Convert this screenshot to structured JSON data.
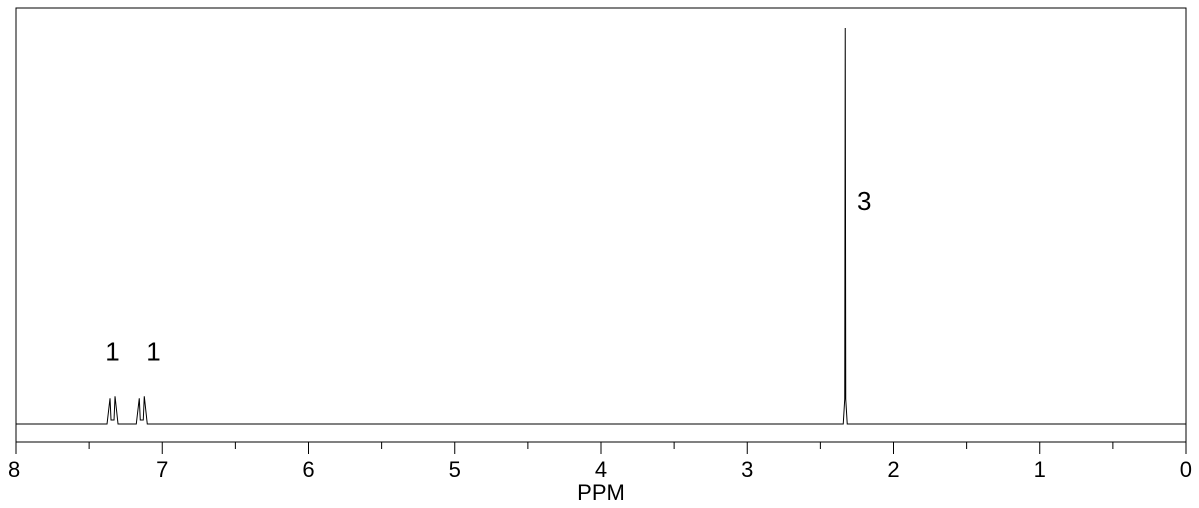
{
  "chart_data": {
    "type": "line",
    "title": "",
    "xlabel": "PPM",
    "ylabel": "",
    "xlim": [
      8,
      0
    ],
    "x_reversed": true,
    "ylim": [
      0,
      1
    ],
    "grid": false,
    "legend": "none",
    "major_ticks": [
      8,
      7,
      6,
      5,
      4,
      3,
      2,
      1,
      0
    ],
    "tick_labels": [
      "8",
      "7",
      "6",
      "5",
      "4",
      "3",
      "2",
      "1",
      "0"
    ],
    "minor_ticks": [
      7.5,
      6.5,
      5.5,
      4.5,
      3.5,
      2.5,
      1.5,
      0.5
    ],
    "baseline": 0,
    "peaks": [
      {
        "ppm": 7.34,
        "height": 0.065,
        "shape": "doublet"
      },
      {
        "ppm": 7.14,
        "height": 0.065,
        "shape": "doublet"
      },
      {
        "ppm": 2.33,
        "height": 1.0,
        "shape": "singlet"
      }
    ],
    "annotations": [
      {
        "text": "1",
        "ppm": 7.34,
        "y": 0.16
      },
      {
        "text": "1",
        "ppm": 7.06,
        "y": 0.16
      },
      {
        "text": "3",
        "ppm": 2.2,
        "y": 0.54
      }
    ],
    "line_color": "#000000",
    "frame_color": "#000000"
  }
}
